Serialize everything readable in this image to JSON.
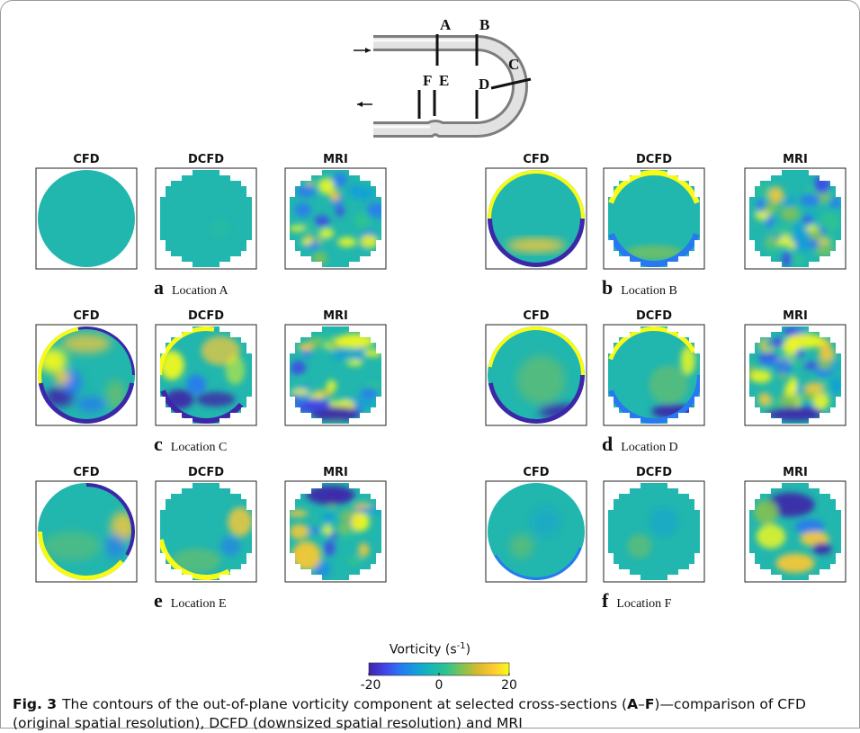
{
  "figure": {
    "fig_number": "Fig. 3",
    "caption_part1": "The contours of the out-of-plane vorticity component at selected cross-sections (",
    "caption_bold_a": "A",
    "caption_dash": "–",
    "caption_bold_f": "F",
    "caption_part2": ")—comparison of CFD (original spatial resolution), DCFD (downsized spatial resolution) and MRI"
  },
  "schematic": {
    "labels": [
      "A",
      "B",
      "C",
      "D",
      "E",
      "F"
    ]
  },
  "column_headers": [
    "CFD",
    "DCFD",
    "MRI"
  ],
  "panels": [
    {
      "letter": "a",
      "location": "Location A"
    },
    {
      "letter": "b",
      "location": "Location B"
    },
    {
      "letter": "c",
      "location": "Location C"
    },
    {
      "letter": "d",
      "location": "Location D"
    },
    {
      "letter": "e",
      "location": "Location E"
    },
    {
      "letter": "f",
      "location": "Location F"
    }
  ],
  "colorbar": {
    "title": "Vorticity (s",
    "title_exp": "-1",
    "title_close": ")",
    "ticks": [
      "-20",
      "0",
      "20"
    ],
    "tick_values": [
      -20,
      0,
      20
    ],
    "range": [
      -20,
      20
    ],
    "colormap": [
      "#3e26a8",
      "#4143e8",
      "#2878f2",
      "#139fd8",
      "#15b8b5",
      "#30c38f",
      "#84c251",
      "#d9b92e",
      "#fec932",
      "#f9fb15"
    ]
  },
  "colors": {
    "background_teal": "#21b6ae",
    "pipe_gray": "#b8b8b8",
    "frame_border": "#9a9a9a"
  }
}
